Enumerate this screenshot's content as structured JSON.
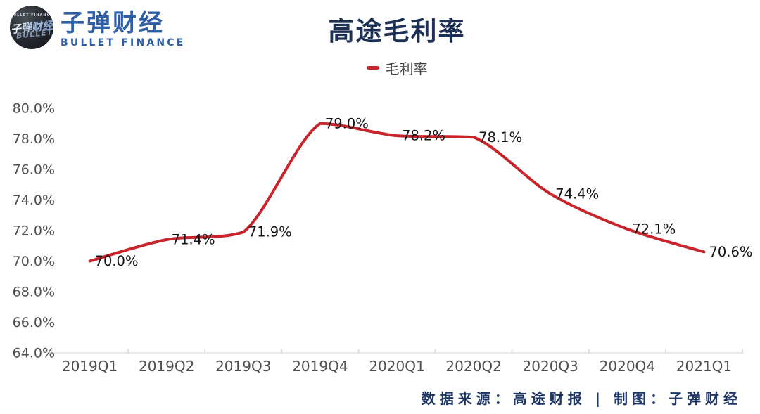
{
  "logo": {
    "badge_top": "BULLET FINANCE",
    "badge_graffiti": "子弹财经",
    "badge_graffiti2": "BULLET",
    "name_cn": "子弹财经",
    "name_en": "BULLET FINANCE",
    "brand_color": "#2e5ea6"
  },
  "header": {
    "title": "高途毛利率"
  },
  "legend": {
    "label": "毛利率"
  },
  "footer": {
    "text": "数据来源：高途财报 | 制图：子弹财经"
  },
  "chart_data": {
    "type": "line",
    "title": "高途毛利率",
    "categories": [
      "2019Q1",
      "2019Q2",
      "2019Q3",
      "2019Q4",
      "2020Q1",
      "2020Q2",
      "2020Q3",
      "2020Q4",
      "2021Q1"
    ],
    "series": [
      {
        "name": "毛利率",
        "values": [
          70.0,
          71.4,
          71.9,
          79.0,
          78.2,
          78.1,
          74.4,
          72.1,
          70.6
        ],
        "labels": [
          "70.0%",
          "71.4%",
          "71.9%",
          "79.0%",
          "78.2%",
          "78.1%",
          "74.4%",
          "72.1%",
          "70.6%"
        ],
        "color": "#c9232b"
      }
    ],
    "xlabel": "",
    "ylabel": "",
    "ylim": [
      64,
      80
    ],
    "y_tick_step": 2,
    "y_tick_labels": [
      "80.0%",
      "78.0%",
      "76.0%",
      "74.0%",
      "72.0%",
      "70.0%",
      "68.0%",
      "66.0%",
      "64.0%"
    ],
    "grid": false,
    "legend_position": "top",
    "smooth": true,
    "axis_color": "#e3e3e3",
    "tick_color": "#d9d9d9",
    "axis_text_color": "#4f4f4f",
    "data_label_color": "#141414"
  }
}
